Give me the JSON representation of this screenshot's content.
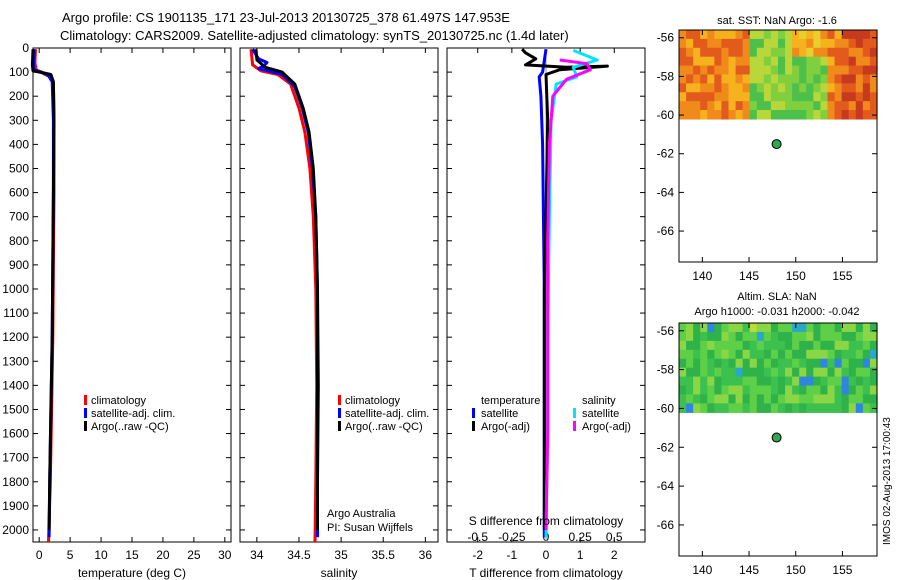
{
  "header": {
    "line1": "Argo profile: CS 1901135_171 23-Jul-2013 20130725_378 61.497S 147.953E",
    "line2": "Climatology: CARS2009. Satellite-adjusted climatology: synTS_20130725.nc (1.4d later)"
  },
  "footer": {
    "credit": "IMOS 02-Aug-2013 17:00:43"
  },
  "colors": {
    "climatology": "#ff0000",
    "satellite": "#0000ff",
    "argo": "#000000",
    "sal_satellite": "#00e5ff",
    "sal_argo": "#ff00ff"
  },
  "chart_data": [
    {
      "type": "line",
      "name": "temperature-profile",
      "xlabel": "temperature (deg C)",
      "ylabel": "",
      "xlim": [
        -1,
        31
      ],
      "ylim": [
        2050,
        0
      ],
      "xticks": [
        0,
        5,
        10,
        15,
        20,
        25,
        30
      ],
      "yticks": [
        0,
        100,
        200,
        300,
        400,
        500,
        600,
        700,
        800,
        900,
        1000,
        1100,
        1200,
        1300,
        1400,
        1500,
        1600,
        1700,
        1800,
        1900,
        2000
      ],
      "legend": [
        "climatology",
        "satellite-adj. clim.",
        "Argo(..raw -QC)"
      ],
      "series": [
        {
          "name": "climatology",
          "color": "#ff0000",
          "points": [
            [
              -0.6,
              5
            ],
            [
              -0.7,
              60
            ],
            [
              -0.5,
              90
            ],
            [
              0.6,
              105
            ],
            [
              1.8,
              120
            ],
            [
              2.3,
              150
            ],
            [
              2.4,
              300
            ],
            [
              2.4,
              600
            ],
            [
              2.3,
              900
            ],
            [
              2.2,
              1200
            ],
            [
              2.0,
              1500
            ],
            [
              1.8,
              1800
            ],
            [
              1.5,
              2050
            ]
          ]
        },
        {
          "name": "satellite",
          "color": "#0000ff",
          "points": [
            [
              -0.8,
              5
            ],
            [
              -0.9,
              60
            ],
            [
              -0.9,
              90
            ],
            [
              0.4,
              100
            ],
            [
              1.5,
              115
            ],
            [
              2.1,
              140
            ],
            [
              2.3,
              300
            ],
            [
              2.3,
              600
            ],
            [
              2.2,
              900
            ],
            [
              2.1,
              1200
            ],
            [
              1.9,
              1500
            ],
            [
              1.7,
              1800
            ],
            [
              1.6,
              2030
            ]
          ]
        },
        {
          "name": "argo",
          "color": "#000000",
          "points": [
            [
              -1.0,
              5
            ],
            [
              -1.1,
              70
            ],
            [
              -1.0,
              95
            ],
            [
              0.5,
              102
            ],
            [
              1.9,
              110
            ],
            [
              2.3,
              140
            ],
            [
              2.4,
              300
            ],
            [
              2.3,
              600
            ],
            [
              2.2,
              900
            ],
            [
              2.1,
              1200
            ],
            [
              1.9,
              1500
            ],
            [
              1.7,
              1800
            ],
            [
              1.6,
              2000
            ]
          ]
        }
      ]
    },
    {
      "type": "line",
      "name": "salinity-profile",
      "xlabel": "salinity",
      "xlim": [
        33.8,
        36.15
      ],
      "ylim": [
        2050,
        0
      ],
      "xticks": [
        34,
        34.5,
        35,
        35.5,
        36
      ],
      "legend": [
        "climatology",
        "satellite-adj. clim.",
        "Argo(..raw -QC)"
      ],
      "annotation": [
        "Argo Australia",
        "PI: Susan Wijffels"
      ],
      "series": [
        {
          "name": "climatology",
          "color": "#ff0000",
          "points": [
            [
              33.93,
              5
            ],
            [
              33.95,
              70
            ],
            [
              34.05,
              95
            ],
            [
              34.25,
              110
            ],
            [
              34.4,
              150
            ],
            [
              34.5,
              250
            ],
            [
              34.57,
              350
            ],
            [
              34.63,
              500
            ],
            [
              34.67,
              700
            ],
            [
              34.7,
              1000
            ],
            [
              34.71,
              1400
            ],
            [
              34.7,
              1800
            ],
            [
              34.69,
              2050
            ]
          ]
        },
        {
          "name": "satellite",
          "color": "#0000ff",
          "points": [
            [
              33.95,
              5
            ],
            [
              34.02,
              45
            ],
            [
              34.12,
              60
            ],
            [
              34.08,
              75
            ],
            [
              34.02,
              85
            ],
            [
              34.3,
              110
            ],
            [
              34.45,
              160
            ],
            [
              34.54,
              250
            ],
            [
              34.61,
              350
            ],
            [
              34.66,
              500
            ],
            [
              34.7,
              700
            ],
            [
              34.72,
              1000
            ],
            [
              34.73,
              1400
            ],
            [
              34.72,
              1800
            ],
            [
              34.72,
              2030
            ]
          ]
        },
        {
          "name": "argo",
          "color": "#000000",
          "points": [
            [
              33.99,
              5
            ],
            [
              34.0,
              50
            ],
            [
              34.1,
              80
            ],
            [
              34.3,
              100
            ],
            [
              34.45,
              150
            ],
            [
              34.55,
              250
            ],
            [
              34.62,
              350
            ],
            [
              34.67,
              500
            ],
            [
              34.7,
              700
            ],
            [
              34.72,
              1000
            ],
            [
              34.72,
              1400
            ],
            [
              34.72,
              1800
            ],
            [
              34.72,
              2000
            ]
          ]
        }
      ]
    },
    {
      "type": "line",
      "name": "difference-profile",
      "xlabel": "T difference from climatology",
      "xlabel2": "S difference from climatology",
      "xlim": [
        -2.9,
        2.9
      ],
      "ylim": [
        2050,
        0
      ],
      "xticks": [
        -2,
        -1,
        0,
        1,
        2
      ],
      "xticks2_labels": [
        "-0.5",
        "-0.25",
        "0",
        "0.25",
        "0.5"
      ],
      "xticks2_pos": [
        -2,
        -1,
        0,
        1,
        2
      ],
      "legend_temperature": [
        "temperature",
        "satellite",
        "Argo(-adj)"
      ],
      "legend_salinity": [
        "salinity",
        "satellite",
        "Argo(-adj)"
      ],
      "series": [
        {
          "name": "T satellite",
          "color": "#0000ff",
          "points": [
            [
              0.0,
              5
            ],
            [
              -0.1,
              100
            ],
            [
              -0.2,
              120
            ],
            [
              -0.15,
              200
            ],
            [
              -0.1,
              400
            ],
            [
              -0.05,
              1000
            ],
            [
              -0.05,
              1600
            ],
            [
              -0.05,
              2030
            ]
          ]
        },
        {
          "name": "T Argo(-adj)",
          "color": "#000000",
          "points": [
            [
              -0.7,
              5
            ],
            [
              -0.6,
              20
            ],
            [
              -0.3,
              45
            ],
            [
              -0.6,
              70
            ],
            [
              0.6,
              80
            ],
            [
              1.8,
              75
            ],
            [
              0.4,
              90
            ],
            [
              0.0,
              110
            ],
            [
              0.05,
              300
            ],
            [
              0.0,
              700
            ],
            [
              -0.05,
              1000
            ],
            [
              -0.05,
              1600
            ],
            [
              -0.05,
              2000
            ]
          ]
        },
        {
          "name": "S satellite",
          "color": "#00e5ff",
          "points": [
            [
              0.8,
              10
            ],
            [
              1.5,
              50
            ],
            [
              0.8,
              80
            ],
            [
              0.9,
              120
            ],
            [
              0.3,
              150
            ],
            [
              0.15,
              300
            ],
            [
              0.1,
              700
            ],
            [
              0.05,
              1200
            ],
            [
              0.05,
              1600
            ],
            [
              0.0,
              2030
            ]
          ]
        },
        {
          "name": "S Argo(-adj)",
          "color": "#ff00ff",
          "points": [
            [
              0.4,
              50
            ],
            [
              1.2,
              65
            ],
            [
              1.3,
              90
            ],
            [
              0.6,
              130
            ],
            [
              0.2,
              200
            ],
            [
              0.1,
              400
            ],
            [
              0.05,
              800
            ],
            [
              0.05,
              1200
            ],
            [
              0.05,
              1600
            ],
            [
              0.0,
              2000
            ]
          ]
        }
      ]
    },
    {
      "type": "heatmap",
      "name": "sst-map",
      "title": "sat. SST: NaN Argo: -1.6",
      "xlim": [
        137.5,
        158.7
      ],
      "ylim": [
        -67.6,
        -55.6
      ],
      "xticks": [
        140,
        145,
        150,
        155
      ],
      "yticks": [
        -56,
        -58,
        -60,
        -62,
        -64,
        -66
      ],
      "data_lat_range": [
        -60.2,
        -55.6
      ],
      "marker": {
        "lon": 147.95,
        "lat": -61.5,
        "color": "#2fa84f"
      }
    },
    {
      "type": "heatmap",
      "name": "sla-map",
      "title": "Altim. SLA: NaN",
      "subtitle": "Argo h1000: -0.031 h2000: -0.042",
      "xlim": [
        137.5,
        158.7
      ],
      "ylim": [
        -67.6,
        -55.6
      ],
      "xticks": [
        140,
        145,
        150,
        155
      ],
      "yticks": [
        -56,
        -58,
        -60,
        -62,
        -64,
        -66
      ],
      "data_lat_range": [
        -60.2,
        -55.6
      ],
      "marker": {
        "lon": 147.95,
        "lat": -61.5,
        "color": "#2fa84f"
      }
    }
  ]
}
